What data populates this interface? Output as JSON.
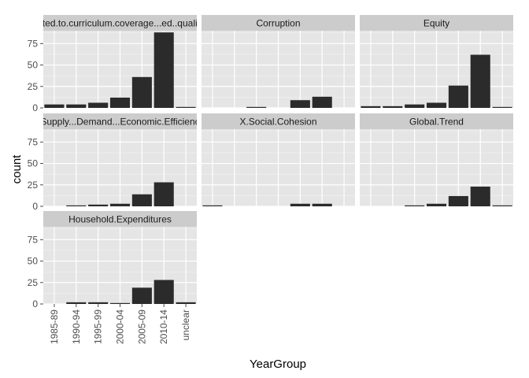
{
  "chart_data": {
    "type": "bar",
    "xlabel": "YearGroup",
    "ylabel": "count",
    "ylim": [
      0,
      90
    ],
    "yticks": [
      0,
      25,
      50,
      75
    ],
    "categories": [
      "1985-89",
      "1990-94",
      "1995-99",
      "2000-04",
      "2005-09",
      "2010-14",
      "unclear"
    ],
    "grid": true,
    "facets": [
      {
        "title": "Related.to.curriculum.coverage...ed..quality...e",
        "values": [
          4,
          4,
          6,
          12,
          36,
          88,
          1
        ]
      },
      {
        "title": "Corruption",
        "values": [
          0,
          0,
          1,
          0,
          9,
          13,
          0
        ]
      },
      {
        "title": "Equity",
        "values": [
          2,
          2,
          4,
          6,
          26,
          62,
          1
        ]
      },
      {
        "title": "Supply...Demand...Economic.Efficienc",
        "values": [
          0,
          1,
          2,
          3,
          14,
          28,
          0
        ]
      },
      {
        "title": "X.Social.Cohesion",
        "values": [
          1,
          0,
          0,
          0,
          3,
          3,
          0
        ]
      },
      {
        "title": "Global.Trend",
        "values": [
          0,
          0,
          1,
          3,
          12,
          23,
          1
        ]
      },
      {
        "title": "Household.Expenditures",
        "values": [
          0,
          2,
          2,
          1,
          19,
          28,
          2
        ]
      }
    ]
  },
  "colors": {
    "panel_bg": "#e5e5e5",
    "strip_bg": "#cccccc",
    "grid_major": "#ffffff",
    "grid_minor": "#f2f2f2",
    "bar": "#2b2b2b",
    "tick": "#4d4d4d"
  }
}
